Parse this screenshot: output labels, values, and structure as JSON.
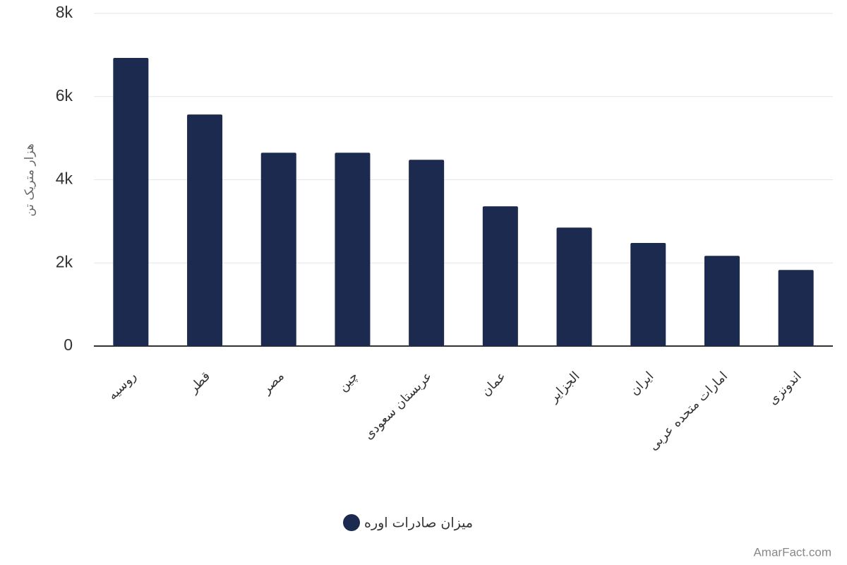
{
  "chart_data": {
    "type": "bar",
    "y_axis_label": "هزار متریک تن",
    "categories": [
      "روسیه",
      "قطر",
      "مصر",
      "چین",
      "عربستان سعودی",
      "عمان",
      "الجزایر",
      "ایران",
      "امارات متحده عربی",
      "اندونزی"
    ],
    "series": [
      {
        "name": "میزان صادرات اوره",
        "color": "#1b2a4e",
        "values": [
          6930,
          5570,
          4650,
          4650,
          4480,
          3360,
          2850,
          2480,
          2170,
          1830
        ]
      }
    ],
    "ylim": [
      0,
      8000
    ],
    "yticks": [
      0,
      {
        "value": 2000,
        "label": "2k"
      },
      {
        "value": 4000,
        "label": "4k"
      },
      {
        "value": 6000,
        "label": "6k"
      },
      {
        "value": 8000,
        "label": "8k"
      }
    ],
    "grid": true,
    "legend": "bottom",
    "watermark": "AmarFact.com"
  }
}
